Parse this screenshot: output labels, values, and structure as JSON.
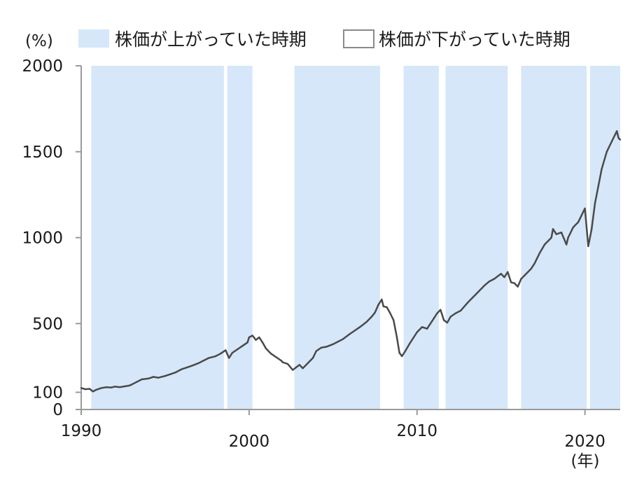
{
  "chart_data": {
    "type": "line",
    "y_unit": "(%)",
    "x_unit": "(年)",
    "legend": [
      {
        "label": "株価が上がっていた時期",
        "color": "#d6e7f9"
      },
      {
        "label": "株価が下がっていた時期",
        "color": "#ffffff"
      }
    ],
    "xlim": [
      1990,
      2022.1
    ],
    "ylim": [
      0,
      2000
    ],
    "xticks": [
      1990,
      2000,
      2010,
      2020
    ],
    "yticks": [
      0,
      100,
      500,
      1000,
      1500,
      2000
    ],
    "line_color": "#4a4a4a",
    "band_color": "#d6e7f9",
    "rising_periods": [
      [
        1990.6,
        1998.5
      ],
      [
        1998.7,
        2000.2
      ],
      [
        2002.7,
        2007.8
      ],
      [
        2009.2,
        2011.3
      ],
      [
        2011.7,
        2015.4
      ],
      [
        2016.2,
        2020.1
      ],
      [
        2020.3,
        2022.1
      ]
    ],
    "series": [
      {
        "x": [
          1990.0,
          1990.25,
          1990.5,
          1990.7,
          1990.9,
          1991.2,
          1991.5,
          1991.8,
          1992.0,
          1992.3,
          1992.6,
          1992.9,
          1993.0,
          1993.3,
          1993.6,
          1994.0,
          1994.3,
          1994.6,
          1995.0,
          1995.3,
          1995.6,
          1996.0,
          1996.3,
          1996.6,
          1997.0,
          1997.3,
          1997.6,
          1998.0,
          1998.3,
          1998.6,
          1998.8,
          1999.0,
          1999.3,
          1999.6,
          1999.9,
          2000.0,
          2000.2,
          2000.4,
          2000.6,
          2000.8,
          2001.0,
          2001.3,
          2001.6,
          2001.9,
          2002.0,
          2002.3,
          2002.6,
          2002.8,
          2003.0,
          2003.2,
          2003.5,
          2003.8,
          2004.0,
          2004.3,
          2004.6,
          2005.0,
          2005.3,
          2005.6,
          2006.0,
          2006.3,
          2006.6,
          2007.0,
          2007.3,
          2007.5,
          2007.7,
          2007.9,
          2008.0,
          2008.2,
          2008.4,
          2008.6,
          2008.8,
          2008.95,
          2009.1,
          2009.3,
          2009.6,
          2010.0,
          2010.3,
          2010.6,
          2011.0,
          2011.2,
          2011.4,
          2011.6,
          2011.8,
          2012.0,
          2012.3,
          2012.6,
          2013.0,
          2013.3,
          2013.6,
          2014.0,
          2014.3,
          2014.6,
          2015.0,
          2015.2,
          2015.4,
          2015.6,
          2015.8,
          2016.0,
          2016.2,
          2016.5,
          2016.8,
          2017.0,
          2017.3,
          2017.6,
          2018.0,
          2018.1,
          2018.3,
          2018.6,
          2018.9,
          2019.0,
          2019.3,
          2019.6,
          2019.9,
          2020.0,
          2020.2,
          2020.4,
          2020.6,
          2020.8,
          2021.0,
          2021.3,
          2021.6,
          2021.8,
          2021.9,
          2022.0,
          2022.1
        ],
        "y": [
          125,
          118,
          120,
          105,
          115,
          125,
          130,
          128,
          133,
          130,
          135,
          140,
          145,
          160,
          175,
          180,
          190,
          185,
          195,
          205,
          215,
          235,
          245,
          255,
          270,
          285,
          300,
          310,
          325,
          345,
          300,
          330,
          350,
          370,
          390,
          420,
          430,
          405,
          420,
          390,
          355,
          325,
          305,
          285,
          275,
          265,
          230,
          245,
          260,
          240,
          270,
          300,
          340,
          360,
          365,
          380,
          395,
          410,
          440,
          460,
          480,
          510,
          540,
          565,
          610,
          640,
          600,
          595,
          560,
          520,
          420,
          330,
          310,
          340,
          390,
          450,
          480,
          470,
          530,
          560,
          580,
          520,
          505,
          540,
          560,
          575,
          620,
          650,
          680,
          720,
          745,
          760,
          790,
          770,
          800,
          740,
          735,
          715,
          760,
          790,
          820,
          850,
          910,
          960,
          1000,
          1050,
          1020,
          1030,
          960,
          1000,
          1060,
          1090,
          1150,
          1170,
          950,
          1050,
          1200,
          1300,
          1400,
          1500,
          1560,
          1600,
          1620,
          1580,
          1570
        ]
      }
    ]
  }
}
